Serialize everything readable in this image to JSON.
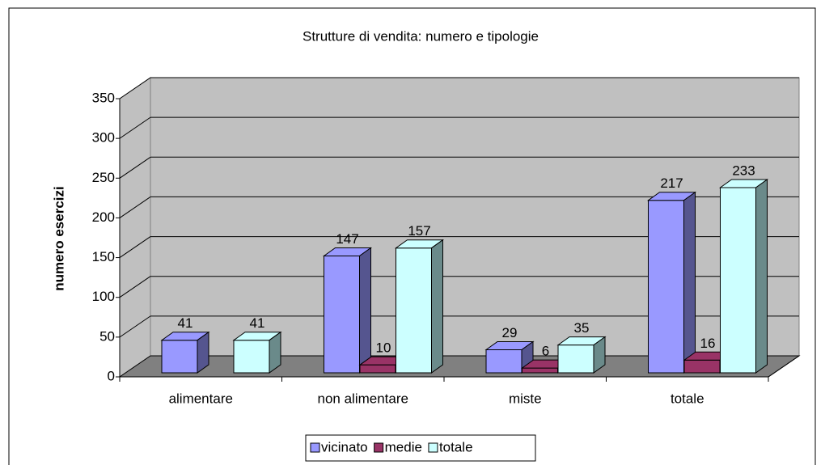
{
  "chart_data": {
    "type": "bar3d",
    "title": "Strutture di vendita: numero e tipologie",
    "y_label": "numero esercizi",
    "categories": [
      "alimentare",
      "non alimentare",
      "miste",
      "totale"
    ],
    "series": [
      {
        "name": "vicinato",
        "color": "#9999ff",
        "side": "#55558f",
        "values": [
          41,
          147,
          29,
          217
        ]
      },
      {
        "name": "medie",
        "color": "#993366",
        "side": "#5c1f3d",
        "values": [
          null,
          10,
          6,
          16
        ]
      },
      {
        "name": "totale",
        "color": "#ccffff",
        "side": "#6a8a8a",
        "values": [
          41,
          157,
          35,
          233
        ]
      }
    ],
    "ylim": [
      0,
      350
    ],
    "yticks": [
      0,
      50,
      100,
      150,
      200,
      250,
      300,
      350
    ],
    "grid": true,
    "legend": "bottom"
  }
}
